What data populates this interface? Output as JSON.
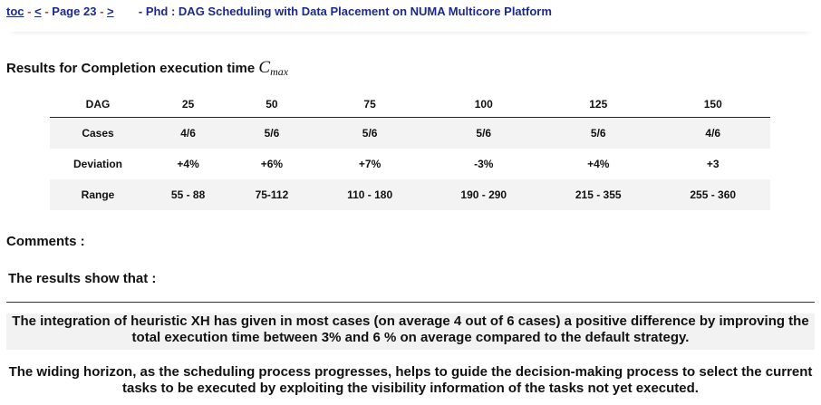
{
  "nav": {
    "toc": "toc",
    "prev": "<",
    "page": "Page 23",
    "next": ">",
    "dash": "-",
    "title": "- Phd : DAG Scheduling with Data Placement on NUMA Multicore Platform"
  },
  "results_title": "Results for Completion execution time",
  "cmax_base": "C",
  "cmax_sub": "max",
  "table": {
    "header_label": "DAG",
    "columns": [
      "25",
      "50",
      "75",
      "100",
      "125",
      "150"
    ],
    "rows": [
      {
        "label": "Cases",
        "values": [
          "4/6",
          "5/6",
          "5/6",
          "5/6",
          "5/6",
          "4/6"
        ]
      },
      {
        "label": "Deviation",
        "values": [
          "+4%",
          "+6%",
          "+7%",
          "-3%",
          "+4%",
          "+3"
        ]
      },
      {
        "label": "Range",
        "values": [
          "55 - 88",
          "75-112",
          "110 - 180",
          "190 - 290",
          "215 - 355",
          "255 - 360"
        ]
      }
    ]
  },
  "comments": "Comments :",
  "results_show": "The results show that :",
  "paragraph1": "The integration of heuristic XH has given in most cases (on average 4 out of 6 cases) a positive difference by improving the total execution time between 3% and 6 % on average compared to the default strategy.",
  "paragraph2": "The widing horizon, as the scheduling process progresses, helps to guide the decision-making process to select the current tasks to be executed by exploiting the visibility information of the tasks not yet executed."
}
